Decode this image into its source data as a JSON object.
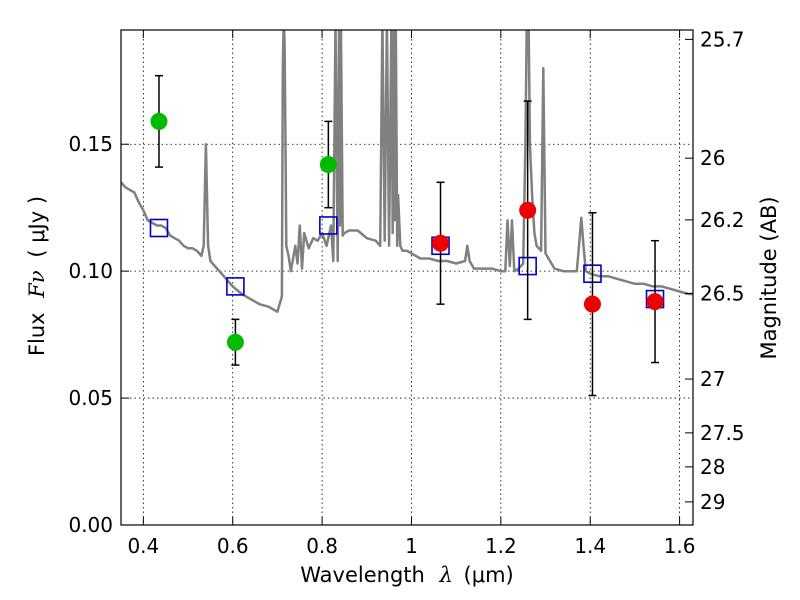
{
  "chart_data": {
    "type": "scatter",
    "xlabel": {
      "text": "Wavelength",
      "symbol": "λ",
      "unit": "(μm)"
    },
    "ylabel": {
      "text": "Flux",
      "symbol": "Fν",
      "unit": "( μJy )"
    },
    "y2label": "Magnitude (AB)",
    "xlim": [
      0.35,
      1.63
    ],
    "ylim": [
      0.0,
      0.195
    ],
    "x_ticks": [
      0.4,
      0.6,
      0.8,
      1.0,
      1.2,
      1.4,
      1.6
    ],
    "x_tick_labels": [
      "0.4",
      "0.6",
      "0.8",
      "1",
      "1.2",
      "1.4",
      "1.6"
    ],
    "y_ticks": [
      0.0,
      0.05,
      0.1,
      0.15
    ],
    "y_tick_labels": [
      "0.00",
      "0.05",
      "0.10",
      "0.15"
    ],
    "y2_ticks": [
      {
        "label": "25.7",
        "flux": 0.1913
      },
      {
        "label": "26",
        "flux": 0.1445
      },
      {
        "label": "26.2",
        "flux": 0.1202
      },
      {
        "label": "26.5",
        "flux": 0.0912
      },
      {
        "label": "27",
        "flux": 0.0575
      },
      {
        "label": "27.5",
        "flux": 0.0363
      },
      {
        "label": "28",
        "flux": 0.0229
      },
      {
        "label": "29",
        "flux": 0.0091
      }
    ],
    "grid": true,
    "colors": {
      "model": "#808080",
      "green": "#00bb00",
      "red": "#ee0000",
      "squares": "#0000cc",
      "errorbar": "#000000"
    },
    "series": [
      {
        "type": "scatter",
        "marker": "circle",
        "color": "#00bb00",
        "points": [
          {
            "x": 0.435,
            "y": 0.159,
            "yerr_low": 0.018,
            "yerr_high": 0.018
          },
          {
            "x": 0.606,
            "y": 0.072,
            "yerr_low": 0.009,
            "yerr_high": 0.009
          },
          {
            "x": 0.814,
            "y": 0.142,
            "yerr_low": 0.017,
            "yerr_high": 0.017
          }
        ]
      },
      {
        "type": "scatter",
        "marker": "circle",
        "color": "#ee0000",
        "points": [
          {
            "x": 1.065,
            "y": 0.111,
            "yerr_low": 0.024,
            "yerr_high": 0.024
          },
          {
            "x": 1.26,
            "y": 0.124,
            "yerr_low": 0.043,
            "yerr_high": 0.043
          },
          {
            "x": 1.405,
            "y": 0.087,
            "yerr_low": 0.036,
            "yerr_high": 0.036
          },
          {
            "x": 1.545,
            "y": 0.088,
            "yerr_low": 0.024,
            "yerr_high": 0.024
          }
        ]
      },
      {
        "type": "scatter",
        "marker": "square-open",
        "color": "#0000cc",
        "points": [
          {
            "x": 0.435,
            "y": 0.117
          },
          {
            "x": 0.606,
            "y": 0.094
          },
          {
            "x": 0.814,
            "y": 0.118
          },
          {
            "x": 1.065,
            "y": 0.11
          },
          {
            "x": 1.26,
            "y": 0.102
          },
          {
            "x": 1.405,
            "y": 0.099
          },
          {
            "x": 1.545,
            "y": 0.089
          }
        ]
      },
      {
        "type": "line",
        "color": "#808080",
        "x": [
          0.35,
          0.36,
          0.37,
          0.38,
          0.39,
          0.4,
          0.41,
          0.42,
          0.43,
          0.44,
          0.45,
          0.46,
          0.47,
          0.48,
          0.49,
          0.5,
          0.51,
          0.52,
          0.53,
          0.535,
          0.54,
          0.545,
          0.55,
          0.56,
          0.58,
          0.6,
          0.62,
          0.64,
          0.66,
          0.68,
          0.7,
          0.71,
          0.712,
          0.714,
          0.716,
          0.718,
          0.72,
          0.725,
          0.73,
          0.74,
          0.745,
          0.75,
          0.755,
          0.76,
          0.77,
          0.78,
          0.79,
          0.8,
          0.81,
          0.82,
          0.825,
          0.83,
          0.835,
          0.838,
          0.84,
          0.842,
          0.846,
          0.85,
          0.86,
          0.88,
          0.9,
          0.92,
          0.93,
          0.935,
          0.94,
          0.945,
          0.95,
          0.955,
          0.958,
          0.96,
          0.962,
          0.965,
          0.968,
          0.97,
          0.975,
          0.98,
          0.99,
          1.0,
          1.02,
          1.04,
          1.06,
          1.08,
          1.1,
          1.12,
          1.125,
          1.13,
          1.14,
          1.16,
          1.18,
          1.2,
          1.21,
          1.215,
          1.22,
          1.225,
          1.23,
          1.24,
          1.25,
          1.255,
          1.258,
          1.26,
          1.262,
          1.265,
          1.27,
          1.275,
          1.28,
          1.29,
          1.295,
          1.3,
          1.31,
          1.32,
          1.34,
          1.36,
          1.37,
          1.375,
          1.38,
          1.385,
          1.39,
          1.4,
          1.42,
          1.44,
          1.46,
          1.48,
          1.5,
          1.52,
          1.54,
          1.56,
          1.58,
          1.6,
          1.62,
          1.63
        ],
        "y": [
          0.135,
          0.133,
          0.132,
          0.131,
          0.127,
          0.124,
          0.12,
          0.119,
          0.118,
          0.118,
          0.117,
          0.114,
          0.113,
          0.112,
          0.11,
          0.109,
          0.109,
          0.108,
          0.106,
          0.11,
          0.15,
          0.11,
          0.104,
          0.102,
          0.098,
          0.094,
          0.091,
          0.089,
          0.087,
          0.086,
          0.084,
          0.09,
          0.18,
          0.199,
          0.19,
          0.15,
          0.11,
          0.106,
          0.1,
          0.11,
          0.103,
          0.118,
          0.101,
          0.115,
          0.109,
          0.113,
          0.112,
          0.115,
          0.11,
          0.118,
          0.104,
          0.199,
          0.104,
          0.199,
          0.118,
          0.199,
          0.114,
          0.115,
          0.116,
          0.116,
          0.113,
          0.112,
          0.11,
          0.199,
          0.112,
          0.199,
          0.11,
          0.199,
          0.115,
          0.199,
          0.12,
          0.199,
          0.11,
          0.13,
          0.11,
          0.108,
          0.108,
          0.107,
          0.105,
          0.105,
          0.104,
          0.104,
          0.103,
          0.104,
          0.11,
          0.104,
          0.101,
          0.101,
          0.101,
          0.1,
          0.1,
          0.12,
          0.102,
          0.12,
          0.1,
          0.101,
          0.103,
          0.15,
          0.199,
          0.199,
          0.199,
          0.15,
          0.13,
          0.115,
          0.11,
          0.108,
          0.18,
          0.107,
          0.104,
          0.101,
          0.1,
          0.1,
          0.1,
          0.11,
          0.121,
          0.11,
          0.1,
          0.099,
          0.098,
          0.098,
          0.097,
          0.096,
          0.095,
          0.095,
          0.094,
          0.094,
          0.093,
          0.092,
          0.091,
          0.091
        ]
      }
    ]
  }
}
